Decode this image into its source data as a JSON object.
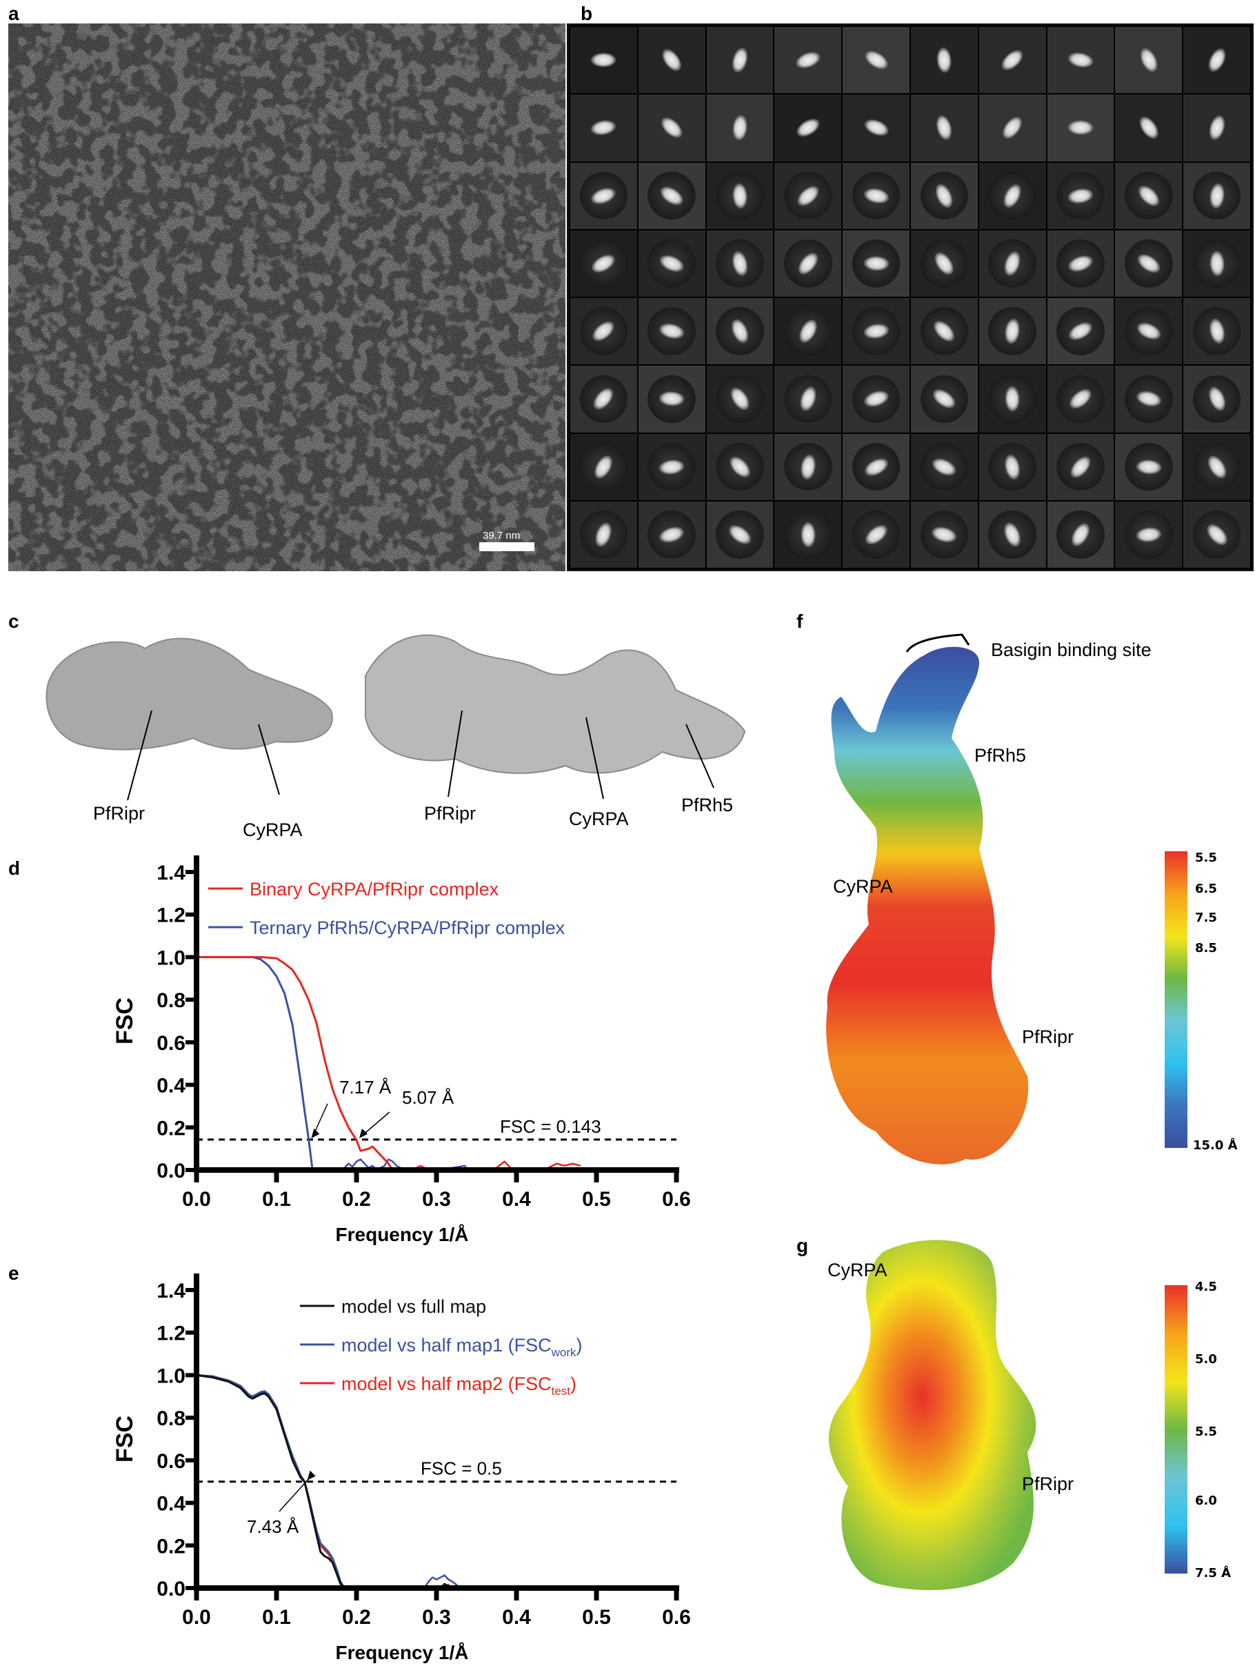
{
  "panels": {
    "a": "a",
    "b": "b",
    "c": "c",
    "d": "d",
    "e": "e",
    "f": "f",
    "g": "g"
  },
  "panel_a": {
    "scale_bar": "39.7 nm"
  },
  "panel_b": {
    "rows": 8,
    "columns": 10
  },
  "panel_c": {
    "left_labels": [
      "PfRipr",
      "CyRPA"
    ],
    "right_labels": [
      "PfRipr",
      "CyRPA",
      "PfRh5"
    ]
  },
  "panel_f": {
    "labels": {
      "site": "Basigin binding site",
      "rh5": "PfRh5",
      "cyrpa": "CyRPA",
      "ripr": "PfRipr"
    },
    "colorbar": {
      "ticks": [
        "5.5",
        "6.5",
        "7.5",
        "8.5"
      ],
      "bottom": "15.0 Å",
      "colors": [
        "#e8312a",
        "#f7a21b",
        "#f5e51a",
        "#6fb844",
        "#6cc5d4",
        "#2ec3ef",
        "#3b76bb",
        "#3a4f9e"
      ]
    }
  },
  "panel_g": {
    "labels": {
      "cyrpa": "CyRPA",
      "ripr": "PfRipr"
    },
    "colorbar": {
      "ticks": [
        "4.5",
        "5.0",
        "5.5",
        "6.0"
      ],
      "bottom": "7.5  Å",
      "colors": [
        "#e8312a",
        "#f7a21b",
        "#f5e51a",
        "#6fb844",
        "#6cc5d4",
        "#2ec3ef",
        "#3a4f9e"
      ]
    }
  },
  "chart_data": [
    {
      "type": "line",
      "xlabel": "Frequency 1/Å",
      "ylabel": "FSC",
      "xlim": [
        0,
        0.6
      ],
      "ylim": [
        0,
        1.4
      ],
      "xticks": [
        "0.0",
        "0.1",
        "0.2",
        "0.3",
        "0.4",
        "0.5",
        "0.6"
      ],
      "yticks": [
        "0.0",
        "0.2",
        "0.4",
        "0.6",
        "0.8",
        "1.0",
        "1.2",
        "1.4"
      ],
      "legend": "top-left",
      "threshold": {
        "value": 0.143,
        "label": "FSC = 0.143"
      },
      "annotations": [
        {
          "text": "7.17 Å",
          "x": 0.14,
          "y": 0.143
        },
        {
          "text": "5.07 Å",
          "x": 0.2,
          "y": 0.143
        }
      ],
      "series": [
        {
          "name": "Binary CyRPA/PfRipr complex",
          "color": "#e8261f",
          "x": [
            0,
            0.08,
            0.1,
            0.11,
            0.12,
            0.13,
            0.14,
            0.15,
            0.16,
            0.17,
            0.18,
            0.19,
            0.2,
            0.205,
            0.215,
            0.22,
            0.23,
            0.24,
            0.245
          ],
          "y": [
            1,
            1,
            0.995,
            0.97,
            0.94,
            0.88,
            0.8,
            0.69,
            0.52,
            0.38,
            0.28,
            0.2,
            0.14,
            0.09,
            0.1,
            0.11,
            0.07,
            0.03,
            0.0
          ]
        },
        {
          "name": "Ternary PfRh5/CyRPA/PfRipr complex",
          "color": "#3a51a3",
          "x": [
            0,
            0.07,
            0.08,
            0.09,
            0.1,
            0.11,
            0.12,
            0.125,
            0.13,
            0.135,
            0.14,
            0.145
          ],
          "y": [
            1,
            1,
            0.99,
            0.96,
            0.91,
            0.83,
            0.68,
            0.55,
            0.42,
            0.28,
            0.15,
            0.0
          ]
        }
      ],
      "noise_series": [
        {
          "color": "#3a51a3",
          "x": [
            0.18,
            0.185,
            0.19,
            0.195,
            0.2,
            0.205,
            0.21,
            0.215,
            0.22,
            0.225,
            0.23,
            0.235,
            0.24,
            0.245,
            0.25,
            0.255,
            0.26
          ],
          "y": [
            0,
            0.01,
            0.03,
            0.015,
            0.04,
            0.05,
            0.03,
            0.01,
            0.02,
            0.0,
            0.01,
            0.02,
            0.05,
            0.04,
            0.02,
            0.01,
            0.0
          ]
        },
        {
          "color": "#3a51a3",
          "x": [
            0.3,
            0.32,
            0.335,
            0.34
          ],
          "y": [
            0,
            0.01,
            0.02,
            0.0
          ]
        },
        {
          "color": "#e8261f",
          "x": [
            0.26,
            0.275,
            0.28,
            0.285,
            0.29
          ],
          "y": [
            0,
            0.01,
            0.02,
            0.01,
            0.0
          ]
        },
        {
          "color": "#e8261f",
          "x": [
            0.365,
            0.375,
            0.385,
            0.39,
            0.395
          ],
          "y": [
            0,
            0.01,
            0.04,
            0.02,
            0.0
          ]
        },
        {
          "color": "#e8261f",
          "x": [
            0.42,
            0.44,
            0.45,
            0.46,
            0.47,
            0.48
          ],
          "y": [
            0,
            0.01,
            0.03,
            0.02,
            0.03,
            0.02
          ]
        }
      ]
    },
    {
      "type": "line",
      "xlabel": "Frequency 1/Å",
      "ylabel": "FSC",
      "xlim": [
        0,
        0.6
      ],
      "ylim": [
        0,
        1.4
      ],
      "xticks": [
        "0.0",
        "0.1",
        "0.2",
        "0.3",
        "0.4",
        "0.5",
        "0.6"
      ],
      "yticks": [
        "0.0",
        "0.2",
        "0.4",
        "0.6",
        "0.8",
        "1.0",
        "1.2",
        "1.4"
      ],
      "legend": "top-right",
      "threshold": {
        "value": 0.5,
        "label": "FSC = 0.5"
      },
      "annotations": [
        {
          "text": "7.43 Å",
          "x": 0.135,
          "y": 0.5
        }
      ],
      "series": [
        {
          "name": "model vs full map",
          "color": "#111111",
          "x": [
            0,
            0.02,
            0.04,
            0.055,
            0.065,
            0.07,
            0.08,
            0.085,
            0.09,
            0.1,
            0.11,
            0.12,
            0.13,
            0.135,
            0.14,
            0.15,
            0.155,
            0.16,
            0.165,
            0.17,
            0.175,
            0.18,
            0.185
          ],
          "y": [
            1,
            0.99,
            0.97,
            0.94,
            0.9,
            0.89,
            0.91,
            0.915,
            0.9,
            0.84,
            0.72,
            0.6,
            0.52,
            0.5,
            0.42,
            0.25,
            0.17,
            0.15,
            0.14,
            0.12,
            0.07,
            0.02,
            0.0
          ]
        },
        {
          "name": "model vs half map1 (FSC",
          "sub": "work",
          "color": "#3a51a3",
          "x": [
            0,
            0.02,
            0.04,
            0.055,
            0.065,
            0.07,
            0.08,
            0.085,
            0.09,
            0.1,
            0.11,
            0.12,
            0.13,
            0.135,
            0.14,
            0.15,
            0.155,
            0.16,
            0.165,
            0.17,
            0.175,
            0.18,
            0.185
          ],
          "y": [
            1,
            0.995,
            0.975,
            0.95,
            0.91,
            0.9,
            0.92,
            0.925,
            0.91,
            0.85,
            0.73,
            0.62,
            0.53,
            0.5,
            0.43,
            0.27,
            0.21,
            0.19,
            0.17,
            0.14,
            0.09,
            0.03,
            0.0
          ]
        },
        {
          "name": "model vs half map2 (FSC",
          "sub": "test",
          "color": "#e8261f",
          "x": [
            0,
            0.02,
            0.04,
            0.055,
            0.065,
            0.07,
            0.08,
            0.085,
            0.09,
            0.1,
            0.11,
            0.12,
            0.13,
            0.135,
            0.14,
            0.15,
            0.155,
            0.16,
            0.165,
            0.17,
            0.175,
            0.18,
            0.185
          ],
          "y": [
            1,
            0.99,
            0.97,
            0.945,
            0.905,
            0.895,
            0.915,
            0.92,
            0.905,
            0.845,
            0.725,
            0.615,
            0.525,
            0.5,
            0.425,
            0.26,
            0.2,
            0.18,
            0.16,
            0.13,
            0.08,
            0.025,
            0.0
          ]
        }
      ],
      "noise_series": [
        {
          "color": "#3a51a3",
          "x": [
            0.27,
            0.285,
            0.29,
            0.295,
            0.3,
            0.305,
            0.31,
            0.315,
            0.32,
            0.33,
            0.34,
            0.4,
            0.48
          ],
          "y": [
            0,
            0.0,
            0.03,
            0.05,
            0.04,
            0.05,
            0.06,
            0.04,
            0.03,
            0.0,
            0,
            0.005,
            0
          ]
        },
        {
          "color": "#e8261f",
          "x": [
            0.305,
            0.31,
            0.315,
            0.32
          ],
          "y": [
            0,
            0.01,
            0.015,
            0
          ]
        },
        {
          "color": "#111111",
          "x": [
            0.305,
            0.31,
            0.315,
            0.32
          ],
          "y": [
            0,
            0.02,
            0.01,
            0
          ]
        }
      ]
    }
  ]
}
